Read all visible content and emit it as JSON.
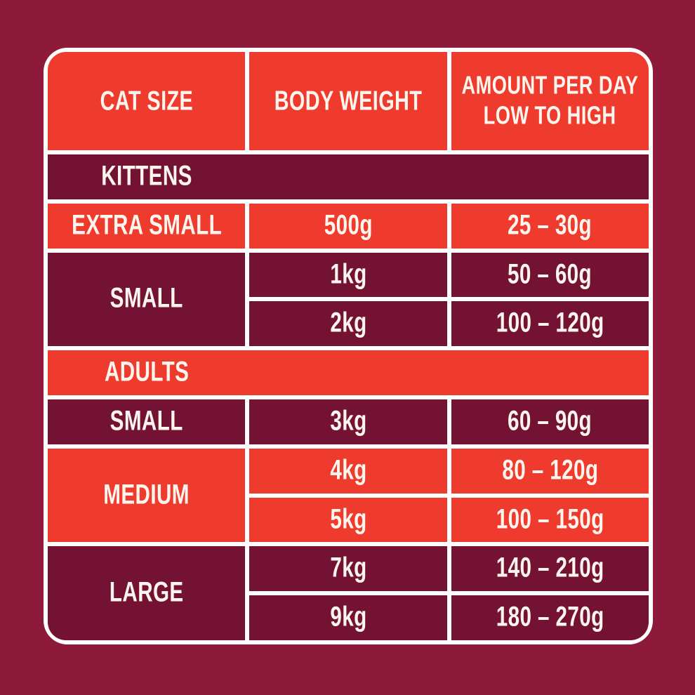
{
  "header": {
    "cat_size": "CAT SIZE",
    "body_weight": "BODY WEIGHT",
    "amount_line1": "AMOUNT PER DAY",
    "amount_line2": "LOW TO HIGH"
  },
  "sections": [
    {
      "label": "KITTENS",
      "rows": [
        {
          "size": "EXTRA SMALL",
          "entries": [
            {
              "weight": "500g",
              "amount": "25 – 30g"
            }
          ]
        },
        {
          "size": "SMALL",
          "entries": [
            {
              "weight": "1kg",
              "amount": "50 – 60g"
            },
            {
              "weight": "2kg",
              "amount": "100 – 120g"
            }
          ]
        }
      ]
    },
    {
      "label": "ADULTS",
      "rows": [
        {
          "size": "SMALL",
          "entries": [
            {
              "weight": "3kg",
              "amount": "60 – 90g"
            }
          ]
        },
        {
          "size": "MEDIUM",
          "entries": [
            {
              "weight": "4kg",
              "amount": "80 – 120g"
            },
            {
              "weight": "5kg",
              "amount": "100 – 150g"
            }
          ]
        },
        {
          "size": "LARGE",
          "entries": [
            {
              "weight": "7kg",
              "amount": "140 – 210g"
            },
            {
              "weight": "9kg",
              "amount": "180 – 270g"
            }
          ]
        }
      ]
    }
  ],
  "chart_data": {
    "type": "table",
    "columns": [
      "CAT SIZE",
      "BODY WEIGHT",
      "AMOUNT PER DAY LOW TO HIGH"
    ],
    "rows": [
      [
        "KITTENS",
        "",
        ""
      ],
      [
        "EXTRA SMALL",
        "500g",
        "25 – 30g"
      ],
      [
        "SMALL",
        "1kg",
        "50 – 60g"
      ],
      [
        "SMALL",
        "2kg",
        "100 – 120g"
      ],
      [
        "ADULTS",
        "",
        ""
      ],
      [
        "SMALL",
        "3kg",
        "60 – 90g"
      ],
      [
        "MEDIUM",
        "4kg",
        "80 – 120g"
      ],
      [
        "MEDIUM",
        "5kg",
        "100 – 150g"
      ],
      [
        "LARGE",
        "7kg",
        "140 – 210g"
      ],
      [
        "LARGE",
        "9kg",
        "180 – 270g"
      ]
    ]
  },
  "colors": {
    "background": "#8D1A3B",
    "row_red": "#EF3B2D",
    "row_dark": "#731233",
    "grid_lines": "#FFFFFF",
    "text": "#FCF5EE"
  }
}
